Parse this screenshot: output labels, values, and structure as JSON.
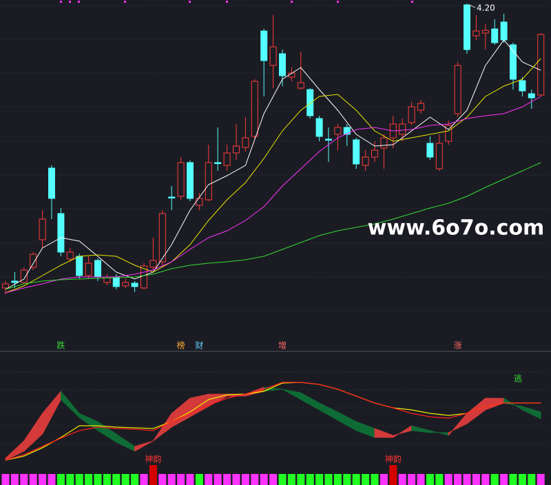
{
  "chart_data": {
    "type": "candlestick",
    "ylim": [
      3.3,
      4.21
    ],
    "up_color": "#ff3b3b",
    "down_color": "#54ffff",
    "open": [
      3.374,
      3.394,
      3.39,
      3.434,
      3.514,
      3.722,
      3.59,
      3.458,
      3.466,
      3.41,
      3.454,
      3.39,
      3.406,
      3.38,
      3.388,
      3.374,
      3.434,
      3.45,
      3.638,
      3.64,
      3.738,
      3.614,
      3.63,
      3.738,
      3.73,
      3.766,
      3.782,
      3.814,
      4.12,
      4.02,
      4.054,
      3.986,
      3.954,
      3.95,
      3.866,
      3.806,
      3.82,
      3.84,
      3.804,
      3.73,
      3.754,
      3.78,
      3.81,
      3.82,
      3.854,
      3.89,
      3.794,
      3.72,
      3.8,
      3.88,
      4.196,
      4.106,
      4.114,
      4.126,
      4.146,
      4.08,
      3.976,
      3.938,
      3.934
    ],
    "close": [
      3.386,
      3.39,
      3.426,
      3.472,
      3.574,
      3.634,
      3.478,
      3.478,
      3.41,
      3.446,
      3.406,
      3.406,
      3.378,
      3.39,
      3.378,
      3.438,
      3.454,
      3.59,
      3.638,
      3.738,
      3.634,
      3.634,
      3.738,
      3.738,
      3.766,
      3.786,
      3.81,
      3.974,
      4.034,
      4.074,
      3.99,
      3.998,
      3.97,
      3.874,
      3.814,
      3.806,
      3.84,
      3.82,
      3.734,
      3.754,
      3.774,
      3.81,
      3.85,
      3.85,
      3.9,
      3.91,
      3.754,
      3.794,
      3.846,
      4.02,
      4.066,
      4.12,
      4.122,
      4.086,
      4.094,
      3.98,
      3.946,
      3.926,
      4.11
    ],
    "high": [
      3.394,
      3.42,
      3.434,
      3.478,
      3.6,
      3.73,
      3.606,
      3.49,
      3.474,
      3.466,
      3.46,
      3.414,
      3.414,
      3.402,
      3.394,
      3.446,
      3.52,
      3.6,
      3.67,
      3.754,
      3.744,
      3.65,
      3.79,
      3.84,
      3.79,
      3.85,
      3.87,
      3.98,
      4.126,
      4.166,
      4.066,
      4.014,
      4.06,
      3.954,
      3.874,
      3.84,
      3.85,
      3.85,
      3.81,
      3.774,
      3.8,
      3.82,
      3.874,
      3.866,
      3.914,
      3.92,
      3.814,
      3.82,
      3.86,
      4.03,
      4.2,
      4.166,
      4.14,
      4.154,
      4.17,
      4.086,
      3.986,
      3.95,
      4.114
    ],
    "low": [
      3.356,
      3.374,
      3.386,
      3.426,
      3.49,
      3.574,
      3.466,
      3.45,
      3.4,
      3.402,
      3.394,
      3.382,
      3.37,
      3.374,
      3.362,
      3.37,
      3.426,
      3.434,
      3.6,
      3.63,
      3.626,
      3.6,
      3.626,
      3.714,
      3.714,
      3.746,
      3.77,
      3.806,
      3.93,
      3.954,
      3.96,
      3.974,
      3.95,
      3.866,
      3.8,
      3.74,
      3.774,
      3.786,
      3.72,
      3.714,
      3.74,
      3.72,
      3.78,
      3.8,
      3.846,
      3.88,
      3.746,
      3.714,
      3.79,
      3.87,
      4.054,
      4.094,
      4.066,
      4.08,
      4.086,
      3.95,
      3.93,
      3.894,
      3.93
    ],
    "max_label": "4.20",
    "ma_series": [
      {
        "color": "#ffffff",
        "values": [
          3.37,
          3.4,
          3.49,
          3.52,
          3.51,
          3.466,
          3.42,
          3.4,
          3.42,
          3.5,
          3.6,
          3.674,
          3.7,
          3.73,
          3.88,
          3.98,
          4.014,
          3.95,
          3.89,
          3.82,
          3.786,
          3.79,
          3.83,
          3.87,
          3.834,
          3.89,
          4.02,
          4.094,
          4.03,
          4.006
        ]
      },
      {
        "color": "#e8e800",
        "values": [
          3.36,
          3.38,
          3.41,
          3.44,
          3.466,
          3.47,
          3.466,
          3.44,
          3.42,
          3.45,
          3.5,
          3.57,
          3.63,
          3.68,
          3.75,
          3.83,
          3.89,
          3.93,
          3.936,
          3.89,
          3.83,
          3.8,
          3.81,
          3.82,
          3.83,
          3.87,
          3.93,
          3.96,
          3.98,
          4.04
        ]
      },
      {
        "color": "#ff33ff",
        "values": [
          3.36,
          3.374,
          3.386,
          3.4,
          3.406,
          3.406,
          3.406,
          3.414,
          3.426,
          3.45,
          3.486,
          3.52,
          3.54,
          3.57,
          3.61,
          3.67,
          3.72,
          3.77,
          3.81,
          3.834,
          3.84,
          3.83,
          3.834,
          3.846,
          3.85,
          3.866,
          3.874,
          3.88,
          3.9,
          3.93
        ]
      },
      {
        "color": "#33dd33",
        "values": [
          3.37,
          3.386,
          3.394,
          3.398,
          3.4,
          3.402,
          3.404,
          3.406,
          3.414,
          3.43,
          3.44,
          3.446,
          3.45,
          3.456,
          3.466,
          3.486,
          3.506,
          3.526,
          3.54,
          3.55,
          3.56,
          3.574,
          3.59,
          3.606,
          3.62,
          3.64,
          3.666,
          3.69,
          3.714,
          3.738
        ]
      }
    ],
    "watermark": "www.6o7o.com",
    "labels": [
      {
        "text": "跌",
        "color": "#33dd33"
      },
      {
        "text": "榜",
        "color": "#ffaa33"
      },
      {
        "text": "财",
        "color": "#66ccff"
      },
      {
        "text": "增",
        "color": "#ff6666"
      },
      {
        "text": "涨",
        "color": "#ff6666"
      }
    ],
    "escape_label": {
      "text": "逃",
      "color": "#33dd33"
    },
    "indicator": {
      "ylim": [
        0,
        170
      ],
      "rise_color": "#d43a3a",
      "fall_color": "#0f6b35",
      "fast": [
        15,
        40,
        80,
        112,
        80,
        68,
        50,
        32,
        40,
        80,
        102,
        108,
        108,
        108,
        118,
        115,
        100,
        85,
        70,
        55,
        45,
        45,
        62,
        55,
        48,
        80,
        102,
        102,
        85,
        72
      ],
      "slow": [
        12,
        25,
        50,
        100,
        74,
        55,
        38,
        25,
        40,
        60,
        75,
        90,
        105,
        105,
        112,
        115,
        110,
        95,
        82,
        68,
        58,
        48,
        55,
        52,
        52,
        65,
        85,
        95,
        90,
        82
      ],
      "lines": [
        {
          "color": "#e8e800",
          "values": [
            12,
            18,
            30,
            45,
            62,
            62,
            60,
            59,
            58,
            68,
            82,
            100,
            107,
            108,
            112,
            124,
            125,
            122,
            115,
            105,
            95,
            88,
            85,
            80,
            77,
            80,
            90,
            95,
            95,
            95
          ]
        },
        {
          "color": "#ff2020",
          "values": [
            12,
            20,
            32,
            44,
            55,
            60,
            58,
            57,
            55,
            68,
            80,
            92,
            102,
            108,
            115,
            125,
            125,
            122,
            115,
            105,
            95,
            88,
            80,
            75,
            73,
            80,
            90,
            95,
            95,
            95
          ]
        }
      ]
    },
    "signals": [
      "#ff33ff",
      "#ff33ff",
      "#ff33ff",
      "#ff33ff",
      "#ff33ff",
      "#ff33ff",
      "#22ff22",
      "#22ff22",
      "#22ff22",
      "#22ff22",
      "#22ff22",
      "#22ff22",
      "#22ff22",
      "#22ff22",
      "#22ff22",
      "#ff33ff",
      "#d40000",
      "#ff33ff",
      "#ff33ff",
      "#ff33ff",
      "#ff33ff",
      "#22ff22",
      "#ff33ff",
      "#ff33ff",
      "#ff33ff",
      "#ff33ff",
      "#ff33ff",
      "#ff33ff",
      "#ff33ff",
      "#ff33ff",
      "#22ff22",
      "#22ff22",
      "#22ff22",
      "#22ff22",
      "#22ff22",
      "#22ff22",
      "#22ff22",
      "#22ff22",
      "#22ff22",
      "#22ff22",
      "#22ff22",
      "#ff33ff",
      "#d40000",
      "#ff33ff",
      "#ff33ff",
      "#ff33ff",
      "#22ff22",
      "#22ff22",
      "#ff33ff",
      "#ff33ff",
      "#ff33ff",
      "#ff33ff",
      "#ff33ff",
      "#22ff22",
      "#ff33ff",
      "#22ff22",
      "#22ff22",
      "#22ff22",
      "#ff33ff"
    ],
    "signal_labels": [
      "神韵",
      "神韵"
    ],
    "signal_label_color": "#ff3333"
  }
}
